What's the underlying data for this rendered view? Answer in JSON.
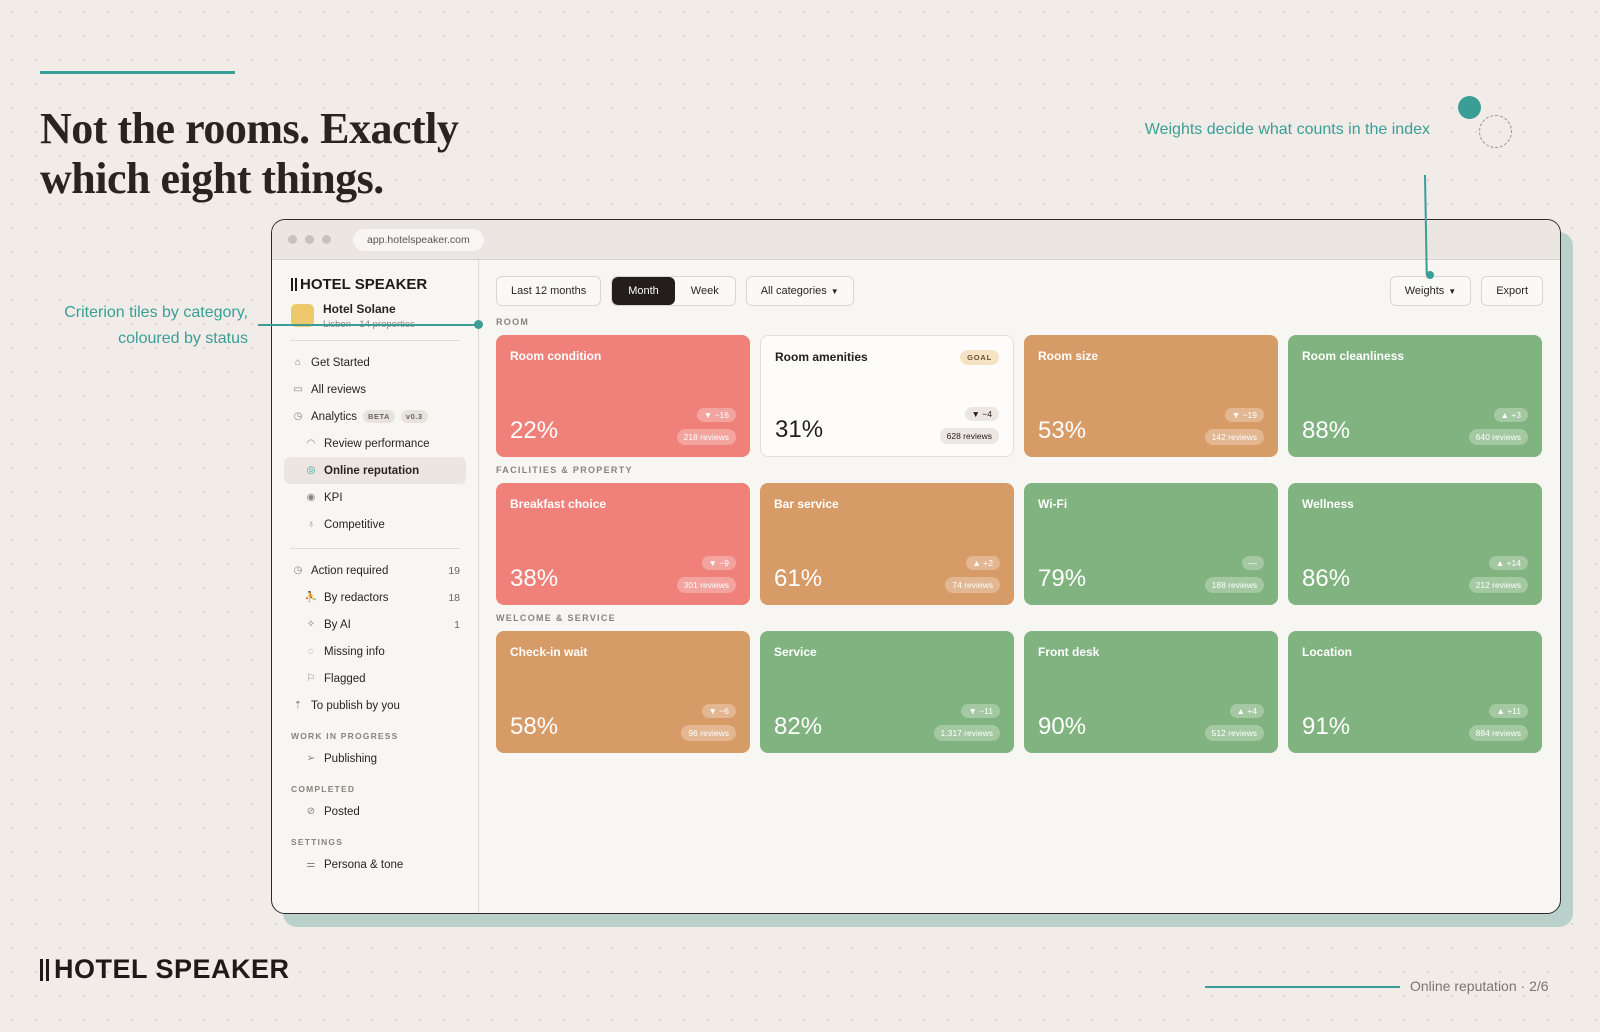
{
  "slide": {
    "headline": "Not the rooms. Exactly which eight things.",
    "callout_weights": "Weights decide what counts in the index",
    "callout_tiles": "Criterion tiles by category, coloured by status",
    "brand": "HOTEL SPEAKER",
    "page_label": "Online reputation · 2/6"
  },
  "browser": {
    "url": "app.hotelspeaker.com"
  },
  "sidebar": {
    "brand": "HOTEL SPEAKER",
    "hotel_name": "Hotel Solane",
    "hotel_sub": "Lisbon · 14 properties",
    "nav": {
      "get_started": "Get Started",
      "all_reviews": "All reviews",
      "analytics": "Analytics",
      "beta": "BETA",
      "version": "v0.3",
      "review_performance": "Review performance",
      "online_reputation": "Online reputation",
      "kpi": "KPI",
      "competitive": "Competitive",
      "action_required": "Action required",
      "action_required_count": "19",
      "by_redactors": "By redactors",
      "by_redactors_count": "18",
      "by_ai": "By AI",
      "by_ai_count": "1",
      "missing_info": "Missing info",
      "flagged": "Flagged",
      "to_publish": "To publish by you"
    },
    "groups": {
      "work_in_progress": "WORK IN PROGRESS",
      "publishing": "Publishing",
      "completed": "COMPLETED",
      "posted": "Posted",
      "settings": "SETTINGS",
      "persona": "Persona & tone"
    }
  },
  "toolbar": {
    "range": "Last 12 months",
    "month": "Month",
    "week": "Week",
    "categories": "All categories",
    "weights": "Weights",
    "export": "Export"
  },
  "sections": [
    {
      "label": "ROOM",
      "tiles": [
        {
          "name": "Room condition",
          "value": "22%",
          "delta": "▼ −16",
          "reviews": "218 reviews",
          "status": "red"
        },
        {
          "name": "Room amenities",
          "value": "31%",
          "delta": "▼ −4",
          "reviews": "628 reviews",
          "status": "neutral",
          "badge": "GOAL"
        },
        {
          "name": "Room size",
          "value": "53%",
          "delta": "▼ −19",
          "reviews": "142 reviews",
          "status": "amber"
        },
        {
          "name": "Room cleanliness",
          "value": "88%",
          "delta": "▲ +3",
          "reviews": "640 reviews",
          "status": "green"
        }
      ]
    },
    {
      "label": "FACILITIES & PROPERTY",
      "tiles": [
        {
          "name": "Breakfast choice",
          "value": "38%",
          "delta": "▼ −9",
          "reviews": "301 reviews",
          "status": "red"
        },
        {
          "name": "Bar service",
          "value": "61%",
          "delta": "▲ +2",
          "reviews": "74 reviews",
          "status": "amber"
        },
        {
          "name": "Wi-Fi",
          "value": "79%",
          "delta": "—",
          "reviews": "188 reviews",
          "status": "green"
        },
        {
          "name": "Wellness",
          "value": "86%",
          "delta": "▲ +14",
          "reviews": "212 reviews",
          "status": "green"
        }
      ]
    },
    {
      "label": "WELCOME & SERVICE",
      "tiles": [
        {
          "name": "Check-in wait",
          "value": "58%",
          "delta": "▼ −6",
          "reviews": "96 reviews",
          "status": "amber"
        },
        {
          "name": "Service",
          "value": "82%",
          "delta": "▼ −11",
          "reviews": "1,317 reviews",
          "status": "green"
        },
        {
          "name": "Front desk",
          "value": "90%",
          "delta": "▲ +4",
          "reviews": "512 reviews",
          "status": "green"
        },
        {
          "name": "Location",
          "value": "91%",
          "delta": "▲ +11",
          "reviews": "884 reviews",
          "status": "green"
        }
      ]
    }
  ],
  "colors": {
    "accent": "#3a9e96",
    "red": "#ef817a",
    "amber": "#d79b68",
    "green": "#80b37f"
  }
}
